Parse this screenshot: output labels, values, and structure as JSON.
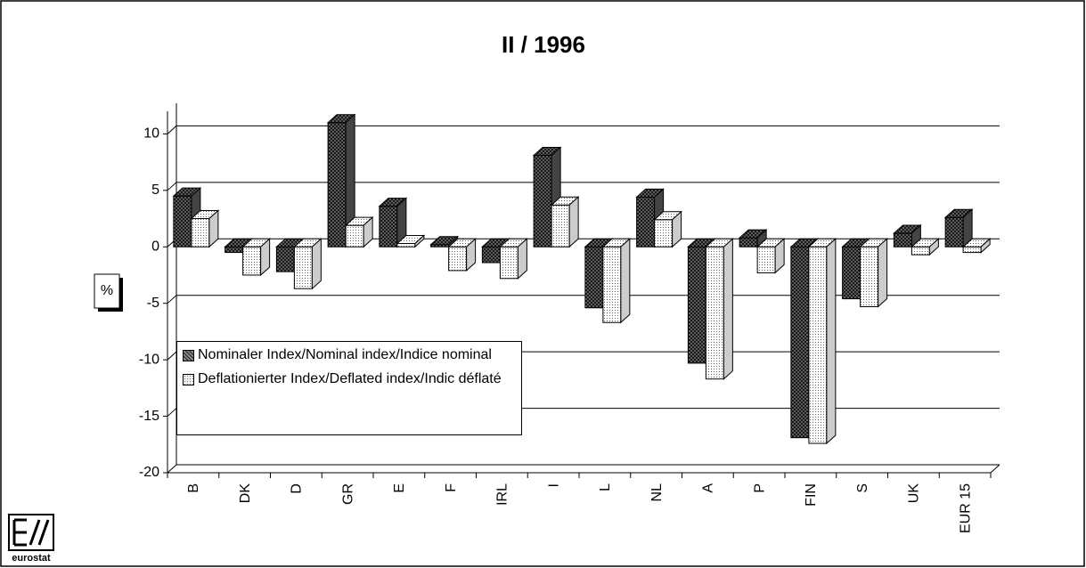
{
  "chart_data": {
    "type": "bar3d",
    "title": "II / 1996",
    "y_label": "%",
    "logo_text": "eurostat",
    "categories": [
      "B",
      "DK",
      "D",
      "GR",
      "E",
      "F",
      "IRL",
      "I",
      "L",
      "NL",
      "A",
      "P",
      "FIN",
      "S",
      "UK",
      "EUR 15"
    ],
    "series": [
      {
        "name": "Nominaler Index/Nominal index/Indice nominal",
        "color": "#555555",
        "values": [
          4.5,
          -0.5,
          -2.2,
          11.0,
          3.6,
          0.2,
          -1.4,
          8.1,
          -5.4,
          4.4,
          -10.3,
          0.8,
          -16.9,
          -4.6,
          1.2,
          2.6
        ]
      },
      {
        "name": "Deflationierter Index/Deflated index/Indic déflaté",
        "color": "#eeeeee",
        "values": [
          2.5,
          -2.5,
          -3.7,
          1.9,
          0.3,
          -2.1,
          -2.8,
          3.7,
          -6.7,
          2.4,
          -11.7,
          -2.3,
          -17.4,
          -5.3,
          -0.7,
          -0.5
        ]
      }
    ],
    "ylim": [
      -20,
      12
    ],
    "yticks": [
      -20,
      -15,
      -10,
      -5,
      0,
      5,
      10
    ],
    "grid": true,
    "legend": "lower-left"
  }
}
